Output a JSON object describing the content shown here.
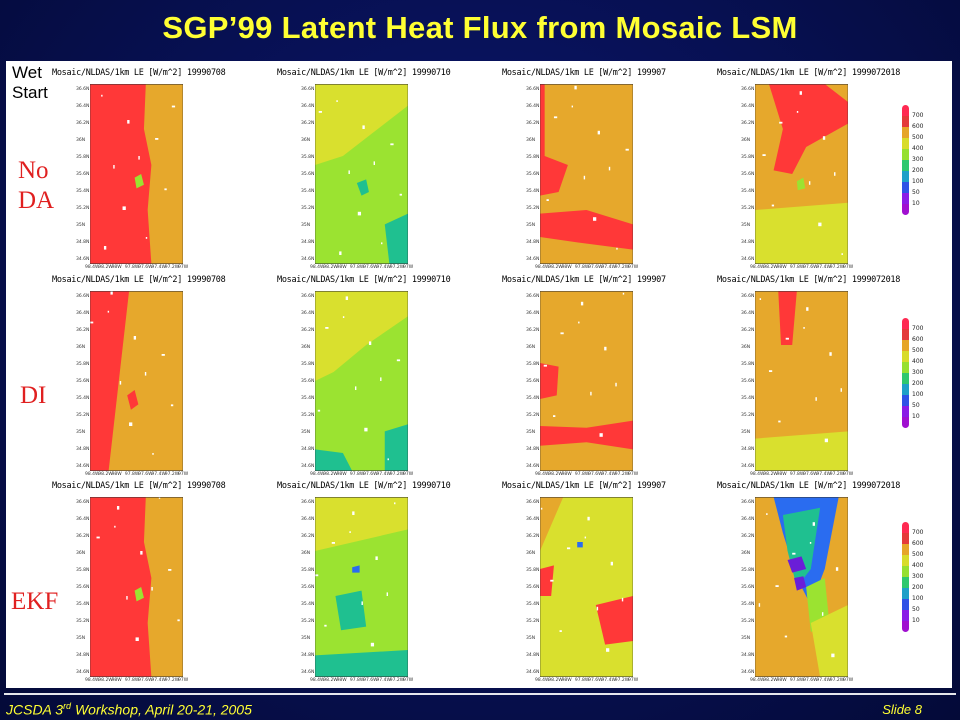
{
  "slide_title": "SGP’99 Latent Heat Flux from Mosaic LSM",
  "wet_start": {
    "line1": "Wet",
    "line2": "Start"
  },
  "rows": [
    {
      "label_line1": "No",
      "label_line2": "DA"
    },
    {
      "label_line1": "DI",
      "label_line2": ""
    },
    {
      "label_line1": "EKF",
      "label_line2": ""
    }
  ],
  "panel_titles": [
    "Mosaic/NLDAS/1km LE [W/m^2] 19990708",
    "Mosaic/NLDAS/1km LE [W/m^2] 19990710",
    "Mosaic/NLDAS/1km LE [W/m^2] 199907",
    "Mosaic/NLDAS/1km LE [W/m^2] 1999072018"
  ],
  "y_tick_labels": [
    "36.6N",
    "36.4N",
    "36.2N",
    "36N",
    "35.8N",
    "35.6N",
    "35.4N",
    "35.2N",
    "35N",
    "34.8N",
    "34.6N"
  ],
  "x_tick_labels": [
    "98.4W",
    "98.2W",
    "98W",
    "97.8W",
    "97.6W",
    "97.4W",
    "97.2W",
    "97W"
  ],
  "colorbar": {
    "labels": [
      "700",
      "600",
      "500",
      "400",
      "300",
      "200",
      "100",
      "50",
      "10"
    ],
    "colors": [
      "#ff2a52",
      "#e43a3a",
      "#e6a528",
      "#d8dc2a",
      "#96e030",
      "#2ec86e",
      "#1ea0c8",
      "#2f52e6",
      "#8a1ce6",
      "#a010d0"
    ]
  },
  "colors": {
    "background": "#071052",
    "title": "#ffff33",
    "row_label": "#e02020",
    "red": "#ff3838",
    "orange": "#e6a82c",
    "green": "#9be331",
    "yellow": "#d9e02e",
    "teal": "#1fc090",
    "blue": "#2a6cf0",
    "purple": "#6a1ed8"
  },
  "footer": {
    "left_prefix": "JCSDA 3",
    "left_sup": "rd",
    "left_suffix": " Workshop, April 20-21, 2005",
    "right": "Slide 8"
  }
}
